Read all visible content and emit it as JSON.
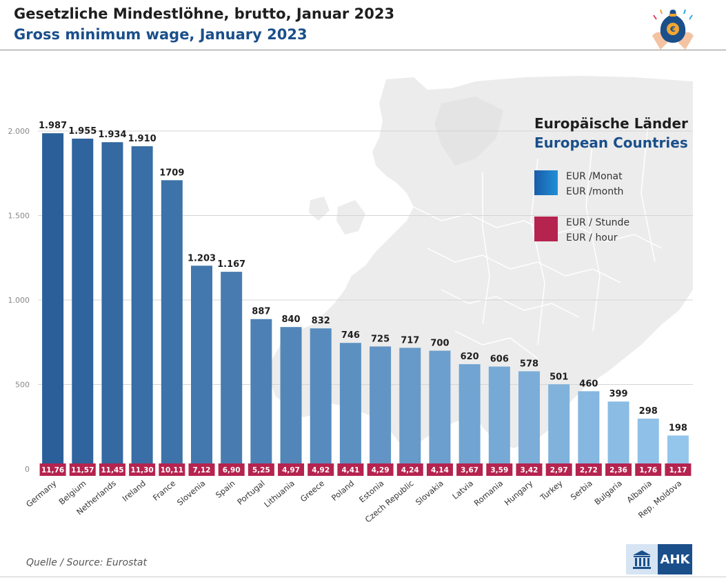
{
  "header": {
    "title_de": "Gesetzliche Mindestlöhne, brutto, Januar 2023",
    "title_en": "Gross minimum wage, January 2023",
    "icon": "money-bag-hands-icon"
  },
  "legend": {
    "title_de": "Europäische Länder",
    "title_en": "European Countries",
    "monthly_de": "EUR /Monat",
    "monthly_en": "EUR /month",
    "hourly_de": "EUR / Stunde",
    "hourly_en": "EUR / hour",
    "monthly_color": "#1f8fd6",
    "hourly_color": "#b5234f"
  },
  "source": "Quelle / Source: Eurostat",
  "brand": {
    "label": "AHK",
    "icon": "building-icon"
  },
  "chart_data": {
    "type": "bar",
    "categories": [
      "Germany",
      "Belgium",
      "Netherlands",
      "Ireland",
      "France",
      "Slovenia",
      "Spain",
      "Portugal",
      "Lithuania",
      "Greece",
      "Poland",
      "Estonia",
      "Czech Republic",
      "Slovakia",
      "Latvia",
      "Romania",
      "Hungary",
      "Turkey",
      "Serbia",
      "Bulgaria",
      "Albania",
      "Rep. Moldova"
    ],
    "series": [
      {
        "name": "EUR /Monat",
        "values": [
          1987,
          1955,
          1934,
          1910,
          1709,
          1203,
          1167,
          887,
          840,
          832,
          746,
          725,
          717,
          700,
          620,
          606,
          578,
          501,
          460,
          399,
          298,
          198
        ],
        "labels": [
          "1.987",
          "1.955",
          "1.934",
          "1.910",
          "1709",
          "1.203",
          "1.167",
          "887",
          "840",
          "832",
          "746",
          "725",
          "717",
          "700",
          "620",
          "606",
          "578",
          "501",
          "460",
          "399",
          "298",
          "198"
        ]
      },
      {
        "name": "EUR / Stunde",
        "values": [
          11.76,
          11.57,
          11.45,
          11.3,
          10.11,
          7.12,
          6.9,
          5.25,
          4.97,
          4.92,
          4.41,
          4.29,
          4.24,
          4.14,
          3.67,
          3.59,
          3.42,
          2.97,
          2.72,
          2.36,
          1.76,
          1.17
        ],
        "labels": [
          "11,76",
          "11,57",
          "11,45",
          "11,30",
          "10,11",
          "7,12",
          "6,90",
          "5,25",
          "4,97",
          "4,92",
          "4,41",
          "4,29",
          "4,24",
          "4,14",
          "3,67",
          "3,59",
          "3,42",
          "2,97",
          "2,72",
          "2,36",
          "1,76",
          "1,17"
        ]
      }
    ],
    "yticks": [
      0,
      500,
      1000,
      1500,
      2000
    ],
    "ytick_labels": [
      "0",
      "500",
      "1.000",
      "1.500",
      "2.000"
    ],
    "ylim": [
      0,
      2150
    ],
    "grid": true,
    "legend_position": "top-right",
    "bar_color_start": "#2a5f9a",
    "bar_color_end": "#94c6ec"
  }
}
